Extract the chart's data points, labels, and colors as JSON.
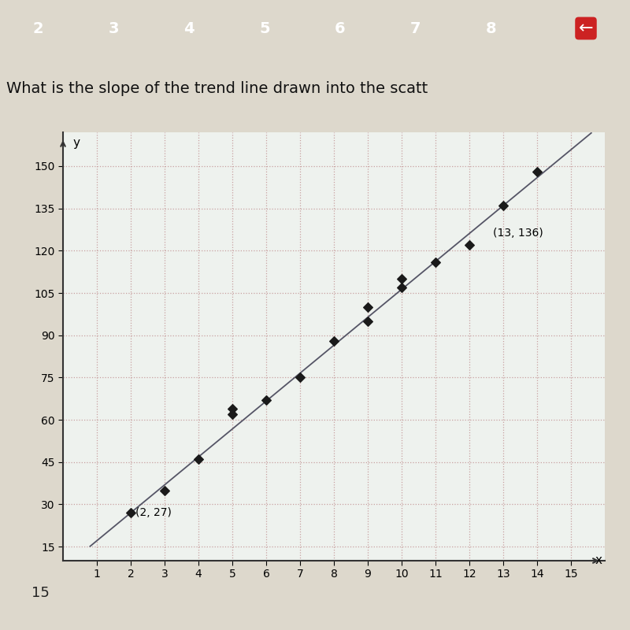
{
  "title": "What is the slope of the trend line drawn into the scatt",
  "scatter_x": [
    2,
    3,
    4,
    5,
    5,
    6,
    7,
    8,
    9,
    9,
    10,
    10,
    11,
    12,
    13,
    14
  ],
  "scatter_y": [
    27,
    35,
    46,
    62,
    64,
    67,
    75,
    88,
    95,
    100,
    107,
    110,
    116,
    122,
    136,
    148
  ],
  "trend_points": [
    [
      2,
      27
    ],
    [
      13,
      136
    ]
  ],
  "label_point1": [
    2,
    27
  ],
  "label_point1_text": "(2, 27)",
  "label_point2": [
    13,
    136
  ],
  "label_point2_text": "(13, 136)",
  "xlim": [
    0,
    16
  ],
  "ylim": [
    10,
    162
  ],
  "xticks": [
    1,
    2,
    3,
    4,
    5,
    6,
    7,
    8,
    9,
    10,
    11,
    12,
    13,
    14,
    15
  ],
  "yticks": [
    15,
    30,
    45,
    60,
    75,
    90,
    105,
    120,
    135,
    150
  ],
  "xlabel": "x",
  "ylabel": "y",
  "scatter_color": "#1a1a1a",
  "trend_color": "#555566",
  "grid_color": "#c8a0a0",
  "bg_color": "#eef2ee",
  "fig_bg_color": "#ddd8cc",
  "nav_bar_color": "#1a0a0a",
  "title_fontsize": 14,
  "label_fontsize": 11,
  "tick_fontsize": 10,
  "bottom_text": "15"
}
